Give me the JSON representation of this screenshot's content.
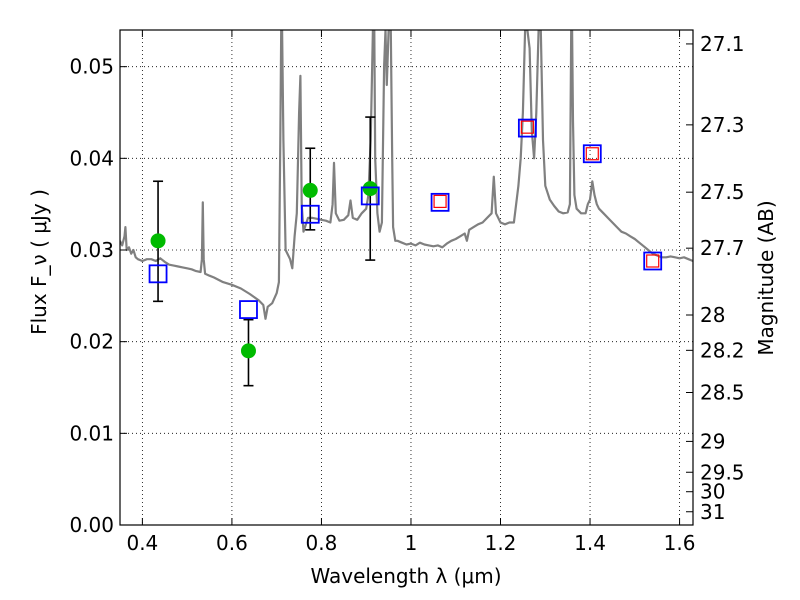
{
  "chart_data": {
    "type": "scatter",
    "xlabel": "Wavelength  λ (μm)",
    "ylabel": "Flux  F_ν  ( μJy )",
    "ylabel_right": "Magnitude (AB)",
    "xlim": [
      0.35,
      1.63
    ],
    "ylim": [
      0.0,
      0.054
    ],
    "x_ticks": [
      0.4,
      0.6,
      0.8,
      1.0,
      1.2,
      1.4,
      1.6
    ],
    "x_tick_labels": [
      "0.4",
      "0.6",
      "0.8",
      "1",
      "1.2",
      "1.4",
      "1.6"
    ],
    "y_ticks": [
      0.0,
      0.01,
      0.02,
      0.03,
      0.04,
      0.05
    ],
    "y_tick_labels": [
      "0.00",
      "0.01",
      "0.02",
      "0.03",
      "0.04",
      "0.05"
    ],
    "right_ticks": [
      {
        "label": "27.1",
        "mag": 27.1
      },
      {
        "label": "27.3",
        "mag": 27.3
      },
      {
        "label": "27.5",
        "mag": 27.5
      },
      {
        "label": "27.7",
        "mag": 27.7
      },
      {
        "label": "28",
        "mag": 28.0
      },
      {
        "label": "28.2",
        "mag": 28.2
      },
      {
        "label": "28.5",
        "mag": 28.5
      },
      {
        "label": "29",
        "mag": 29.0
      },
      {
        "label": "29.5",
        "mag": 29.5
      },
      {
        "label": "30",
        "mag": 30.0
      },
      {
        "label": "31",
        "mag": 31.0
      }
    ],
    "grid": true,
    "series": [
      {
        "kind": "spectrum",
        "color": "#808080",
        "points": [
          [
            0.35,
            0.031
          ],
          [
            0.355,
            0.0305
          ],
          [
            0.36,
            0.0315
          ],
          [
            0.362,
            0.0325
          ],
          [
            0.365,
            0.03
          ],
          [
            0.37,
            0.0303
          ],
          [
            0.375,
            0.0296
          ],
          [
            0.38,
            0.03
          ],
          [
            0.385,
            0.0292
          ],
          [
            0.39,
            0.029
          ],
          [
            0.4,
            0.0288
          ],
          [
            0.41,
            0.029
          ],
          [
            0.42,
            0.029
          ],
          [
            0.43,
            0.0288
          ],
          [
            0.44,
            0.0291
          ],
          [
            0.45,
            0.0287
          ],
          [
            0.46,
            0.0284
          ],
          [
            0.47,
            0.0283
          ],
          [
            0.48,
            0.0282
          ],
          [
            0.49,
            0.0281
          ],
          [
            0.5,
            0.028
          ],
          [
            0.51,
            0.0279
          ],
          [
            0.52,
            0.0277
          ],
          [
            0.53,
            0.0276
          ],
          [
            0.533,
            0.029
          ],
          [
            0.535,
            0.0352
          ],
          [
            0.537,
            0.029
          ],
          [
            0.54,
            0.0274
          ],
          [
            0.55,
            0.0272
          ],
          [
            0.56,
            0.027
          ],
          [
            0.58,
            0.0265
          ],
          [
            0.6,
            0.0262
          ],
          [
            0.62,
            0.0258
          ],
          [
            0.64,
            0.0252
          ],
          [
            0.66,
            0.0245
          ],
          [
            0.67,
            0.024
          ],
          [
            0.675,
            0.0225
          ],
          [
            0.68,
            0.0238
          ],
          [
            0.69,
            0.0242
          ],
          [
            0.7,
            0.0253
          ],
          [
            0.705,
            0.0265
          ],
          [
            0.708,
            0.042
          ],
          [
            0.71,
            0.054
          ],
          [
            0.712,
            0.054
          ],
          [
            0.715,
            0.042
          ],
          [
            0.72,
            0.03
          ],
          [
            0.73,
            0.029
          ],
          [
            0.735,
            0.028
          ],
          [
            0.74,
            0.0315
          ],
          [
            0.745,
            0.034
          ],
          [
            0.75,
            0.045
          ],
          [
            0.753,
            0.049
          ],
          [
            0.756,
            0.035
          ],
          [
            0.76,
            0.032
          ],
          [
            0.77,
            0.0335
          ],
          [
            0.78,
            0.0335
          ],
          [
            0.79,
            0.0334
          ],
          [
            0.8,
            0.0333
          ],
          [
            0.81,
            0.0332
          ],
          [
            0.82,
            0.033
          ],
          [
            0.825,
            0.035
          ],
          [
            0.828,
            0.0395
          ],
          [
            0.832,
            0.034
          ],
          [
            0.84,
            0.0332
          ],
          [
            0.85,
            0.0333
          ],
          [
            0.86,
            0.0338
          ],
          [
            0.865,
            0.0354
          ],
          [
            0.87,
            0.0335
          ],
          [
            0.88,
            0.0333
          ],
          [
            0.89,
            0.034
          ],
          [
            0.9,
            0.0345
          ],
          [
            0.905,
            0.036
          ],
          [
            0.91,
            0.042
          ],
          [
            0.915,
            0.054
          ],
          [
            0.918,
            0.054
          ],
          [
            0.92,
            0.04
          ],
          [
            0.925,
            0.034
          ],
          [
            0.93,
            0.032
          ],
          [
            0.935,
            0.033
          ],
          [
            0.94,
            0.05
          ],
          [
            0.943,
            0.054
          ],
          [
            0.946,
            0.048
          ],
          [
            0.95,
            0.054
          ],
          [
            0.955,
            0.054
          ],
          [
            0.958,
            0.04
          ],
          [
            0.96,
            0.0325
          ],
          [
            0.965,
            0.031
          ],
          [
            0.97,
            0.031
          ],
          [
            0.98,
            0.0308
          ],
          [
            0.99,
            0.0306
          ],
          [
            1.0,
            0.0307
          ],
          [
            1.01,
            0.0305
          ],
          [
            1.02,
            0.0308
          ],
          [
            1.03,
            0.0306
          ],
          [
            1.04,
            0.0305
          ],
          [
            1.05,
            0.0304
          ],
          [
            1.06,
            0.0305
          ],
          [
            1.07,
            0.0303
          ],
          [
            1.08,
            0.0307
          ],
          [
            1.09,
            0.031
          ],
          [
            1.1,
            0.0312
          ],
          [
            1.11,
            0.0315
          ],
          [
            1.12,
            0.0318
          ],
          [
            1.125,
            0.031
          ],
          [
            1.13,
            0.0322
          ],
          [
            1.14,
            0.0325
          ],
          [
            1.15,
            0.0328
          ],
          [
            1.16,
            0.033
          ],
          [
            1.17,
            0.0335
          ],
          [
            1.18,
            0.034
          ],
          [
            1.185,
            0.038
          ],
          [
            1.19,
            0.034
          ],
          [
            1.2,
            0.033
          ],
          [
            1.21,
            0.0328
          ],
          [
            1.22,
            0.033
          ],
          [
            1.23,
            0.033
          ],
          [
            1.24,
            0.037
          ],
          [
            1.245,
            0.04
          ],
          [
            1.25,
            0.045
          ],
          [
            1.255,
            0.054
          ],
          [
            1.26,
            0.054
          ],
          [
            1.265,
            0.052
          ],
          [
            1.27,
            0.043
          ],
          [
            1.275,
            0.04
          ],
          [
            1.28,
            0.045
          ],
          [
            1.285,
            0.054
          ],
          [
            1.29,
            0.054
          ],
          [
            1.295,
            0.042
          ],
          [
            1.3,
            0.037
          ],
          [
            1.31,
            0.0355
          ],
          [
            1.32,
            0.0348
          ],
          [
            1.33,
            0.0342
          ],
          [
            1.34,
            0.034
          ],
          [
            1.35,
            0.0341
          ],
          [
            1.355,
            0.035
          ],
          [
            1.358,
            0.054
          ],
          [
            1.36,
            0.054
          ],
          [
            1.362,
            0.044
          ],
          [
            1.365,
            0.036
          ],
          [
            1.37,
            0.0345
          ],
          [
            1.38,
            0.034
          ],
          [
            1.39,
            0.034
          ],
          [
            1.395,
            0.035
          ],
          [
            1.4,
            0.0355
          ],
          [
            1.405,
            0.0375
          ],
          [
            1.41,
            0.036
          ],
          [
            1.415,
            0.035
          ],
          [
            1.42,
            0.0345
          ],
          [
            1.43,
            0.034
          ],
          [
            1.44,
            0.0335
          ],
          [
            1.45,
            0.033
          ],
          [
            1.46,
            0.0325
          ],
          [
            1.47,
            0.032
          ],
          [
            1.48,
            0.0318
          ],
          [
            1.49,
            0.0315
          ],
          [
            1.5,
            0.0312
          ],
          [
            1.51,
            0.0308
          ],
          [
            1.52,
            0.0304
          ],
          [
            1.53,
            0.03
          ],
          [
            1.54,
            0.0296
          ],
          [
            1.55,
            0.0294
          ],
          [
            1.56,
            0.0292
          ],
          [
            1.57,
            0.0292
          ],
          [
            1.58,
            0.0293
          ],
          [
            1.59,
            0.0292
          ],
          [
            1.6,
            0.0291
          ],
          [
            1.61,
            0.0292
          ],
          [
            1.62,
            0.029
          ],
          [
            1.63,
            0.0288
          ]
        ]
      },
      {
        "kind": "errorbar",
        "color": "#000000",
        "points": [
          {
            "x": 0.435,
            "ylow": 0.0244,
            "yhigh": 0.0375
          },
          {
            "x": 0.637,
            "ylow": 0.0152,
            "yhigh": 0.0224
          },
          {
            "x": 0.775,
            "ylow": 0.0322,
            "yhigh": 0.0411
          },
          {
            "x": 0.909,
            "ylow": 0.0289,
            "yhigh": 0.0445
          }
        ]
      },
      {
        "kind": "circle",
        "color": "#00bb00",
        "points": [
          [
            0.435,
            0.031
          ],
          [
            0.637,
            0.019
          ],
          [
            0.775,
            0.0365
          ],
          [
            0.909,
            0.0367
          ]
        ]
      },
      {
        "kind": "open-square-blue",
        "color": "#0000ff",
        "points": [
          [
            0.435,
            0.0274
          ],
          [
            0.637,
            0.0235
          ],
          [
            0.775,
            0.0339
          ],
          [
            0.909,
            0.0359
          ],
          [
            1.065,
            0.0352
          ],
          [
            1.26,
            0.0433
          ],
          [
            1.405,
            0.0405
          ],
          [
            1.54,
            0.0288
          ]
        ]
      },
      {
        "kind": "open-square-red",
        "color": "#ff0000",
        "points": [
          [
            1.065,
            0.0353
          ],
          [
            1.26,
            0.0434
          ],
          [
            1.405,
            0.0405
          ],
          [
            1.54,
            0.0288
          ]
        ]
      }
    ]
  }
}
